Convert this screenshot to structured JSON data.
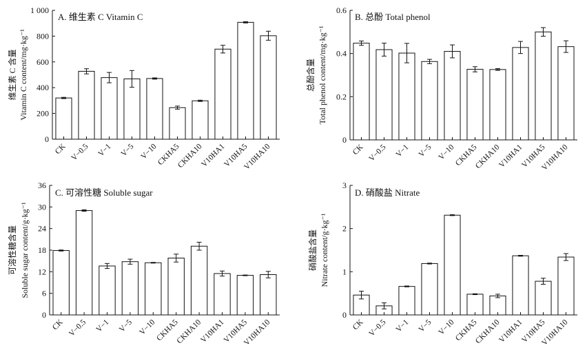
{
  "chart_data": [
    {
      "type": "bar",
      "title": "A. 维生素 C Vitamin C",
      "ylabel": [
        "维生素 C 含量",
        "Vitamin C content/mg·kg⁻¹"
      ],
      "categories": [
        "CK",
        "V−0.5",
        "V−1",
        "V−5",
        "V−10",
        "CKHA5",
        "CKHA10",
        "V10HA1",
        "V10HA5",
        "V10HA10"
      ],
      "values": [
        320,
        527,
        478,
        468,
        471,
        245,
        298,
        699,
        907,
        803
      ],
      "errors": [
        5,
        20,
        40,
        65,
        5,
        12,
        5,
        30,
        5,
        35
      ],
      "ylim": [
        0,
        1000
      ],
      "yticks": [
        0,
        200,
        400,
        600,
        800,
        1000
      ],
      "ytick_labels": [
        "0",
        "200",
        "400",
        "600",
        "800",
        "1 000"
      ]
    },
    {
      "type": "bar",
      "title": "B. 总酚 Total phenol",
      "ylabel": [
        "总酚含量",
        "Total phenol content/mg·kg⁻¹"
      ],
      "categories": [
        "CK",
        "V−0.5",
        "V−1",
        "V−5",
        "V−10",
        "CKHA5",
        "CKHA10",
        "V10HA1",
        "V10HA5",
        "V10HA10"
      ],
      "values": [
        0.448,
        0.418,
        0.402,
        0.363,
        0.41,
        0.327,
        0.326,
        0.428,
        0.5,
        0.432
      ],
      "errors": [
        0.01,
        0.03,
        0.045,
        0.01,
        0.03,
        0.012,
        0.004,
        0.028,
        0.02,
        0.027
      ],
      "ylim": [
        0,
        0.6
      ],
      "yticks": [
        0,
        0.2,
        0.4,
        0.6
      ],
      "ytick_labels": [
        "0",
        "0.2",
        "0.4",
        "0.6"
      ]
    },
    {
      "type": "bar",
      "title": "C. 可溶性糖 Soluble sugar",
      "ylabel": [
        "可溶性糖含量",
        "Soluble sugar content/g·kg⁻¹"
      ],
      "categories": [
        "CK",
        "V−0.5",
        "V−1",
        "V−5",
        "V−10",
        "CKHA5",
        "CKHA10",
        "V10HA1",
        "V10HA5",
        "V10HA10"
      ],
      "values": [
        17.9,
        29.0,
        13.6,
        14.8,
        14.5,
        15.8,
        19.1,
        11.5,
        11.0,
        11.2
      ],
      "errors": [
        0.15,
        0.2,
        0.7,
        0.7,
        0.1,
        1.1,
        1.1,
        0.7,
        0.1,
        0.9
      ],
      "ylim": [
        0,
        36
      ],
      "yticks": [
        0,
        6,
        12,
        18,
        24,
        30,
        36
      ],
      "ytick_labels": [
        "0",
        "6",
        "12",
        "18",
        "24",
        "30",
        "36"
      ]
    },
    {
      "type": "bar",
      "title": "D. 硝酸盐 Nitrate",
      "ylabel": [
        "硝酸盐含量",
        "Nitrate content/g·kg⁻¹"
      ],
      "categories": [
        "CK",
        "V−0.5",
        "V−1",
        "V−5",
        "V−10",
        "CKHA5",
        "CKHA10",
        "V10HA1",
        "V10HA5",
        "V10HA10"
      ],
      "values": [
        0.46,
        0.21,
        0.66,
        1.19,
        2.31,
        0.48,
        0.44,
        1.37,
        0.78,
        1.34
      ],
      "errors": [
        0.09,
        0.07,
        0.01,
        0.01,
        0.01,
        0.01,
        0.04,
        0.01,
        0.07,
        0.08
      ],
      "ylim": [
        0,
        3
      ],
      "yticks": [
        0,
        1,
        2,
        3
      ],
      "ytick_labels": [
        "0",
        "1",
        "2",
        "3"
      ]
    }
  ]
}
